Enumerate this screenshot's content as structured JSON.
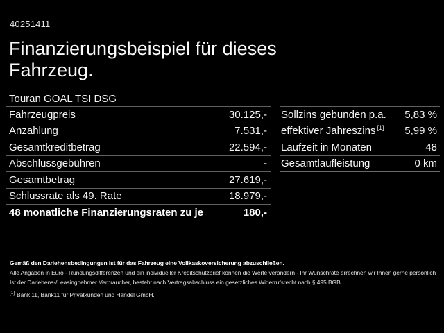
{
  "page": {
    "background_color": "#000000",
    "text_color": "#ffffff",
    "divider_color": "#606060"
  },
  "header": {
    "vehicle_id": "40251411",
    "title": "Finanzierungsbeispiel für dieses Fahrzeug.",
    "subtitle": "Touran GOAL TSI DSG"
  },
  "finance_table": {
    "rows": [
      {
        "label": "Fahrzeugpreis",
        "value": "30.125,-"
      },
      {
        "label": "Anzahlung",
        "value": "7.531,-"
      },
      {
        "label": "Gesamtkreditbetrag",
        "value": "22.594,-"
      },
      {
        "label": "Abschlussgebühren",
        "value": "-"
      },
      {
        "label": "Gesamtbetrag",
        "value": "27.619,-"
      },
      {
        "label": "Schlussrate als 49. Rate",
        "value": "18.979,-"
      },
      {
        "label": "48 monatliche Finanzierungsraten zu je",
        "value": "180,-"
      }
    ]
  },
  "conditions_table": {
    "rows": [
      {
        "label": "Sollzins gebunden p.a.",
        "marker": "",
        "value": "5,83 %"
      },
      {
        "label": "effektiver Jahreszins",
        "marker": "[1]",
        "value": "5,99 %"
      },
      {
        "label": "Laufzeit in Monaten",
        "marker": "",
        "value": "48"
      },
      {
        "label": "Gesamtlaufleistung",
        "marker": "",
        "value": "0 km"
      }
    ]
  },
  "footnotes": {
    "insurance_note": "Gemäß den Darlehensbedingungen ist für das Fahrzeug eine Vollkaskoversicherung abzuschließen.",
    "rounding_note": "Alle Angaben in Euro - Rundungsdifferenzen und ein individueller Kreditschutzbrief können die Werte verändern - Ihr Wunschrate errechnen wir Ihnen gerne persönlich",
    "withdrawal_note": "Ist der Darlehens-/Leasingnehmer Verbraucher, besteht nach Vertragsabschluss ein gesetzliches Widerrufsrecht nach § 495 BGB",
    "bank_note_marker": "[1]",
    "bank_note": "Bank 11, Bank11 für Privatkunden und Handel GmbH."
  }
}
